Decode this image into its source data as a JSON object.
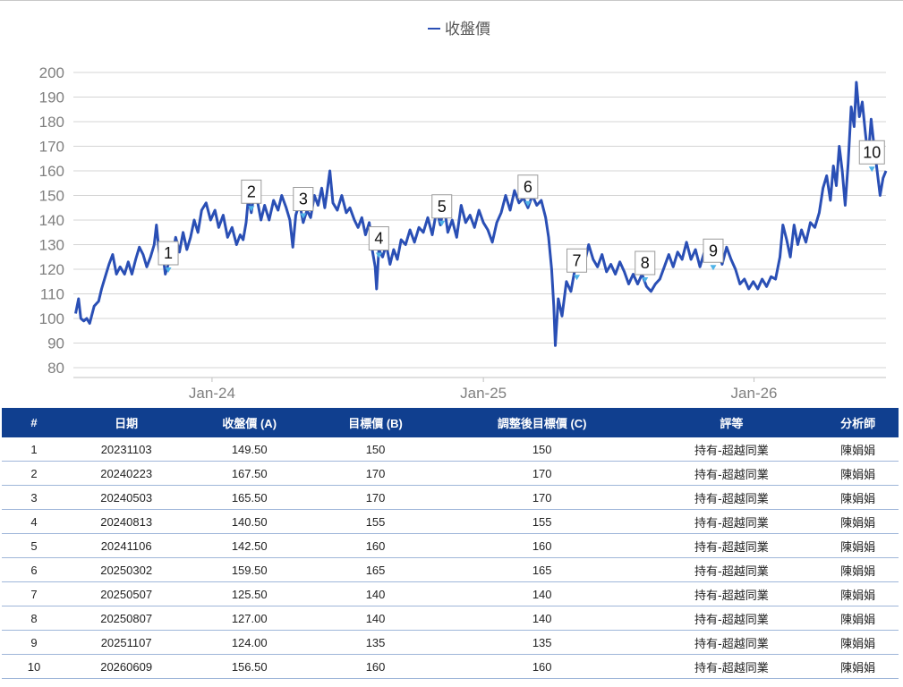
{
  "chart_data": {
    "type": "line",
    "legend": "收盤價",
    "series": [
      {
        "name": "收盤價",
        "color": "#2a4fb5",
        "points": [
          [
            "2023-07-01",
            102
          ],
          [
            "2023-07-05",
            108
          ],
          [
            "2023-07-08",
            100
          ],
          [
            "2023-07-12",
            99
          ],
          [
            "2023-07-16",
            100
          ],
          [
            "2023-07-20",
            98
          ],
          [
            "2023-07-26",
            105
          ],
          [
            "2023-08-01",
            107
          ],
          [
            "2023-08-05",
            112
          ],
          [
            "2023-08-10",
            117
          ],
          [
            "2023-08-15",
            122
          ],
          [
            "2023-08-20",
            126
          ],
          [
            "2023-08-25",
            118
          ],
          [
            "2023-08-30",
            121
          ],
          [
            "2023-09-05",
            118
          ],
          [
            "2023-09-10",
            123
          ],
          [
            "2023-09-15",
            118
          ],
          [
            "2023-09-20",
            124
          ],
          [
            "2023-09-25",
            129
          ],
          [
            "2023-09-30",
            126
          ],
          [
            "2023-10-05",
            121
          ],
          [
            "2023-10-10",
            125
          ],
          [
            "2023-10-15",
            130
          ],
          [
            "2023-10-18",
            138
          ],
          [
            "2023-10-22",
            126
          ],
          [
            "2023-10-26",
            128
          ],
          [
            "2023-10-30",
            118
          ],
          [
            "2023-11-03",
            122
          ],
          [
            "2023-11-08",
            125
          ],
          [
            "2023-11-13",
            133
          ],
          [
            "2023-11-18",
            127
          ],
          [
            "2023-11-23",
            135
          ],
          [
            "2023-11-28",
            128
          ],
          [
            "2023-12-03",
            133
          ],
          [
            "2023-12-08",
            140
          ],
          [
            "2023-12-13",
            135
          ],
          [
            "2023-12-18",
            144
          ],
          [
            "2023-12-24",
            147
          ],
          [
            "2023-12-30",
            140
          ],
          [
            "2024-01-05",
            144
          ],
          [
            "2024-01-10",
            137
          ],
          [
            "2024-01-16",
            142
          ],
          [
            "2024-01-22",
            133
          ],
          [
            "2024-01-28",
            137
          ],
          [
            "2024-02-03",
            130
          ],
          [
            "2024-02-08",
            134
          ],
          [
            "2024-02-12",
            132
          ],
          [
            "2024-02-16",
            139
          ],
          [
            "2024-02-19",
            149
          ],
          [
            "2024-02-23",
            143
          ],
          [
            "2024-02-27",
            151
          ],
          [
            "2024-03-02",
            148
          ],
          [
            "2024-03-07",
            140
          ],
          [
            "2024-03-12",
            146
          ],
          [
            "2024-03-18",
            140
          ],
          [
            "2024-03-24",
            148
          ],
          [
            "2024-03-30",
            144
          ],
          [
            "2024-04-04",
            150
          ],
          [
            "2024-04-10",
            145
          ],
          [
            "2024-04-15",
            140
          ],
          [
            "2024-04-19",
            129
          ],
          [
            "2024-04-23",
            142
          ],
          [
            "2024-04-28",
            147
          ],
          [
            "2024-05-03",
            139
          ],
          [
            "2024-05-08",
            144
          ],
          [
            "2024-05-13",
            141
          ],
          [
            "2024-05-18",
            150
          ],
          [
            "2024-05-23",
            146
          ],
          [
            "2024-05-28",
            153
          ],
          [
            "2024-06-01",
            145
          ],
          [
            "2024-06-04",
            151
          ],
          [
            "2024-06-08",
            160
          ],
          [
            "2024-06-12",
            147
          ],
          [
            "2024-06-18",
            144
          ],
          [
            "2024-06-24",
            150
          ],
          [
            "2024-06-30",
            143
          ],
          [
            "2024-07-05",
            145
          ],
          [
            "2024-07-11",
            140
          ],
          [
            "2024-07-16",
            137
          ],
          [
            "2024-07-21",
            141
          ],
          [
            "2024-07-26",
            134
          ],
          [
            "2024-07-31",
            139
          ],
          [
            "2024-08-04",
            128
          ],
          [
            "2024-08-08",
            121
          ],
          [
            "2024-08-10",
            112
          ],
          [
            "2024-08-13",
            128
          ],
          [
            "2024-08-18",
            125
          ],
          [
            "2024-08-23",
            130
          ],
          [
            "2024-08-28",
            122
          ],
          [
            "2024-09-02",
            128
          ],
          [
            "2024-09-07",
            124
          ],
          [
            "2024-09-12",
            132
          ],
          [
            "2024-09-18",
            130
          ],
          [
            "2024-09-24",
            136
          ],
          [
            "2024-09-30",
            131
          ],
          [
            "2024-10-06",
            137
          ],
          [
            "2024-10-12",
            135
          ],
          [
            "2024-10-18",
            141
          ],
          [
            "2024-10-24",
            134
          ],
          [
            "2024-10-30",
            144
          ],
          [
            "2024-11-04",
            138
          ],
          [
            "2024-11-09",
            146
          ],
          [
            "2024-11-14",
            135
          ],
          [
            "2024-11-20",
            140
          ],
          [
            "2024-11-26",
            133
          ],
          [
            "2024-12-02",
            146
          ],
          [
            "2024-12-08",
            139
          ],
          [
            "2024-12-14",
            142
          ],
          [
            "2024-12-20",
            137
          ],
          [
            "2024-12-26",
            144
          ],
          [
            "2025-01-01",
            139
          ],
          [
            "2025-01-07",
            136
          ],
          [
            "2025-01-13",
            131
          ],
          [
            "2025-01-19",
            139
          ],
          [
            "2025-01-25",
            143
          ],
          [
            "2025-01-31",
            150
          ],
          [
            "2025-02-06",
            144
          ],
          [
            "2025-02-12",
            152
          ],
          [
            "2025-02-18",
            147
          ],
          [
            "2025-02-24",
            149
          ],
          [
            "2025-03-02",
            145
          ],
          [
            "2025-03-08",
            150
          ],
          [
            "2025-03-14",
            146
          ],
          [
            "2025-03-20",
            148
          ],
          [
            "2025-03-26",
            141
          ],
          [
            "2025-03-30",
            133
          ],
          [
            "2025-04-03",
            120
          ],
          [
            "2025-04-06",
            105
          ],
          [
            "2025-04-08",
            89
          ],
          [
            "2025-04-12",
            108
          ],
          [
            "2025-04-17",
            101
          ],
          [
            "2025-04-23",
            115
          ],
          [
            "2025-04-29",
            111
          ],
          [
            "2025-05-05",
            121
          ],
          [
            "2025-05-11",
            126
          ],
          [
            "2025-05-17",
            122
          ],
          [
            "2025-05-23",
            130
          ],
          [
            "2025-05-29",
            124
          ],
          [
            "2025-06-04",
            121
          ],
          [
            "2025-06-10",
            126
          ],
          [
            "2025-06-16",
            119
          ],
          [
            "2025-06-22",
            122
          ],
          [
            "2025-06-28",
            118
          ],
          [
            "2025-07-04",
            123
          ],
          [
            "2025-07-10",
            119
          ],
          [
            "2025-07-16",
            114
          ],
          [
            "2025-07-22",
            118
          ],
          [
            "2025-07-28",
            114
          ],
          [
            "2025-08-03",
            118
          ],
          [
            "2025-08-09",
            113
          ],
          [
            "2025-08-15",
            111
          ],
          [
            "2025-08-21",
            114
          ],
          [
            "2025-08-27",
            116
          ],
          [
            "2025-09-02",
            121
          ],
          [
            "2025-09-08",
            126
          ],
          [
            "2025-09-14",
            121
          ],
          [
            "2025-09-20",
            127
          ],
          [
            "2025-09-26",
            124
          ],
          [
            "2025-10-02",
            131
          ],
          [
            "2025-10-08",
            124
          ],
          [
            "2025-10-14",
            128
          ],
          [
            "2025-10-20",
            121
          ],
          [
            "2025-10-26",
            127
          ],
          [
            "2025-11-01",
            131
          ],
          [
            "2025-11-07",
            124
          ],
          [
            "2025-11-13",
            128
          ],
          [
            "2025-11-19",
            122
          ],
          [
            "2025-11-25",
            129
          ],
          [
            "2025-12-01",
            124
          ],
          [
            "2025-12-07",
            120
          ],
          [
            "2025-12-13",
            114
          ],
          [
            "2025-12-19",
            116
          ],
          [
            "2025-12-25",
            112
          ],
          [
            "2025-12-31",
            115
          ],
          [
            "2026-01-06",
            112
          ],
          [
            "2026-01-12",
            116
          ],
          [
            "2026-01-18",
            113
          ],
          [
            "2026-01-24",
            117
          ],
          [
            "2026-01-30",
            116
          ],
          [
            "2026-02-05",
            125
          ],
          [
            "2026-02-09",
            138
          ],
          [
            "2026-02-14",
            132
          ],
          [
            "2026-02-19",
            125
          ],
          [
            "2026-02-24",
            138
          ],
          [
            "2026-03-01",
            130
          ],
          [
            "2026-03-06",
            136
          ],
          [
            "2026-03-12",
            131
          ],
          [
            "2026-03-18",
            139
          ],
          [
            "2026-03-24",
            137
          ],
          [
            "2026-03-30",
            143
          ],
          [
            "2026-04-04",
            153
          ],
          [
            "2026-04-09",
            158
          ],
          [
            "2026-04-14",
            148
          ],
          [
            "2026-04-18",
            162
          ],
          [
            "2026-04-22",
            154
          ],
          [
            "2026-04-26",
            170
          ],
          [
            "2026-04-30",
            160
          ],
          [
            "2026-05-04",
            146
          ],
          [
            "2026-05-08",
            163
          ],
          [
            "2026-05-12",
            186
          ],
          [
            "2026-05-16",
            178
          ],
          [
            "2026-05-19",
            196
          ],
          [
            "2026-05-23",
            182
          ],
          [
            "2026-05-27",
            188
          ],
          [
            "2026-05-31",
            176
          ],
          [
            "2026-06-04",
            165
          ],
          [
            "2026-06-08",
            181
          ],
          [
            "2026-06-12",
            170
          ],
          [
            "2026-06-16",
            160
          ],
          [
            "2026-06-20",
            150
          ],
          [
            "2026-06-24",
            157
          ],
          [
            "2026-06-28",
            160
          ]
        ]
      }
    ],
    "x_tick_labels": [
      {
        "date": "2024-01-01",
        "label": "Jan-24"
      },
      {
        "date": "2025-01-01",
        "label": "Jan-25"
      },
      {
        "date": "2026-01-01",
        "label": "Jan-26"
      }
    ],
    "xlim": [
      "2023-06-28",
      "2026-06-28"
    ],
    "ylim": [
      80,
      200
    ],
    "yticks": [
      80,
      90,
      100,
      110,
      120,
      130,
      140,
      150,
      160,
      170,
      180,
      190,
      200
    ],
    "grid": "horizontal",
    "legend_position": "top-center",
    "markers": [
      {
        "label": "1",
        "date": "2023-11-03",
        "price": 120
      },
      {
        "label": "2",
        "date": "2024-02-23",
        "price": 145
      },
      {
        "label": "3",
        "date": "2024-05-03",
        "price": 142
      },
      {
        "label": "4",
        "date": "2024-08-13",
        "price": 126
      },
      {
        "label": "5",
        "date": "2024-11-06",
        "price": 139
      },
      {
        "label": "6",
        "date": "2025-03-02",
        "price": 147
      },
      {
        "label": "7",
        "date": "2025-05-07",
        "price": 117
      },
      {
        "label": "8",
        "date": "2025-08-07",
        "price": 116
      },
      {
        "label": "9",
        "date": "2025-11-07",
        "price": 121
      },
      {
        "label": "10",
        "date": "2026-06-09",
        "price": 161
      }
    ]
  },
  "table": {
    "headers": [
      "#",
      "日期",
      "收盤價 (A)",
      "目標價 (B)",
      "調整後目標價 (C)",
      "評等",
      "分析師"
    ],
    "rows": [
      [
        "1",
        "20231103",
        "149.50",
        "150",
        "150",
        "持有-超越同業",
        "陳娟娟"
      ],
      [
        "2",
        "20240223",
        "167.50",
        "170",
        "170",
        "持有-超越同業",
        "陳娟娟"
      ],
      [
        "3",
        "20240503",
        "165.50",
        "170",
        "170",
        "持有-超越同業",
        "陳娟娟"
      ],
      [
        "4",
        "20240813",
        "140.50",
        "155",
        "155",
        "持有-超越同業",
        "陳娟娟"
      ],
      [
        "5",
        "20241106",
        "142.50",
        "160",
        "160",
        "持有-超越同業",
        "陳娟娟"
      ],
      [
        "6",
        "20250302",
        "159.50",
        "165",
        "165",
        "持有-超越同業",
        "陳娟娟"
      ],
      [
        "7",
        "20250507",
        "125.50",
        "140",
        "140",
        "持有-超越同業",
        "陳娟娟"
      ],
      [
        "8",
        "20250807",
        "127.00",
        "140",
        "140",
        "持有-超越同業",
        "陳娟娟"
      ],
      [
        "9",
        "20251107",
        "124.00",
        "135",
        "135",
        "持有-超越同業",
        "陳娟娟"
      ],
      [
        "10",
        "20260609",
        "156.50",
        "160",
        "160",
        "持有-超越同業",
        "陳娟娟"
      ]
    ]
  }
}
